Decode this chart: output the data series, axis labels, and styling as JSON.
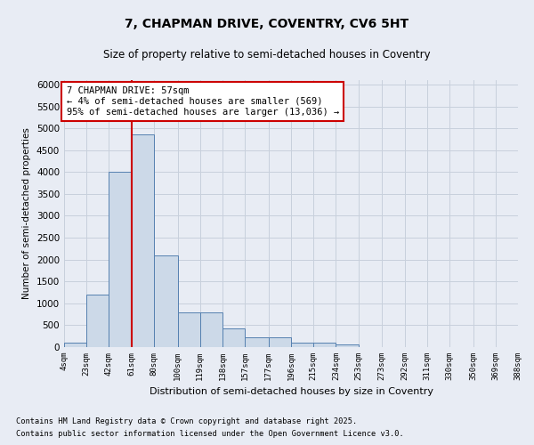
{
  "title1": "7, CHAPMAN DRIVE, COVENTRY, CV6 5HT",
  "title2": "Size of property relative to semi-detached houses in Coventry",
  "xlabel": "Distribution of semi-detached houses by size in Coventry",
  "ylabel": "Number of semi-detached properties",
  "annotation_title": "7 CHAPMAN DRIVE: 57sqm",
  "annotation_line1": "← 4% of semi-detached houses are smaller (569)",
  "annotation_line2": "95% of semi-detached houses are larger (13,036) →",
  "footer1": "Contains HM Land Registry data © Crown copyright and database right 2025.",
  "footer2": "Contains public sector information licensed under the Open Government Licence v3.0.",
  "bar_color": "#ccd9e8",
  "bar_edge_color": "#5580b0",
  "grid_color": "#c8d0dc",
  "vline_color": "#cc0000",
  "annotation_box_color": "#cc0000",
  "background_color": "#e8ecf4",
  "vline_x": 61,
  "bin_edges": [
    4,
    23,
    42,
    61,
    80,
    100,
    119,
    138,
    157,
    177,
    196,
    215,
    234,
    253,
    273,
    292,
    311,
    330,
    350,
    369,
    388
  ],
  "bin_labels": [
    "4sqm",
    "23sqm",
    "42sqm",
    "61sqm",
    "80sqm",
    "100sqm",
    "119sqm",
    "138sqm",
    "157sqm",
    "177sqm",
    "196sqm",
    "215sqm",
    "234sqm",
    "253sqm",
    "273sqm",
    "292sqm",
    "311sqm",
    "330sqm",
    "350sqm",
    "369sqm",
    "388sqm"
  ],
  "bar_heights": [
    100,
    1200,
    4000,
    4850,
    2100,
    800,
    800,
    420,
    225,
    225,
    110,
    110,
    60,
    0,
    0,
    0,
    0,
    0,
    0,
    0
  ],
  "ylim": [
    0,
    6100
  ],
  "yticks": [
    0,
    500,
    1000,
    1500,
    2000,
    2500,
    3000,
    3500,
    4000,
    4500,
    5000,
    5500,
    6000
  ]
}
